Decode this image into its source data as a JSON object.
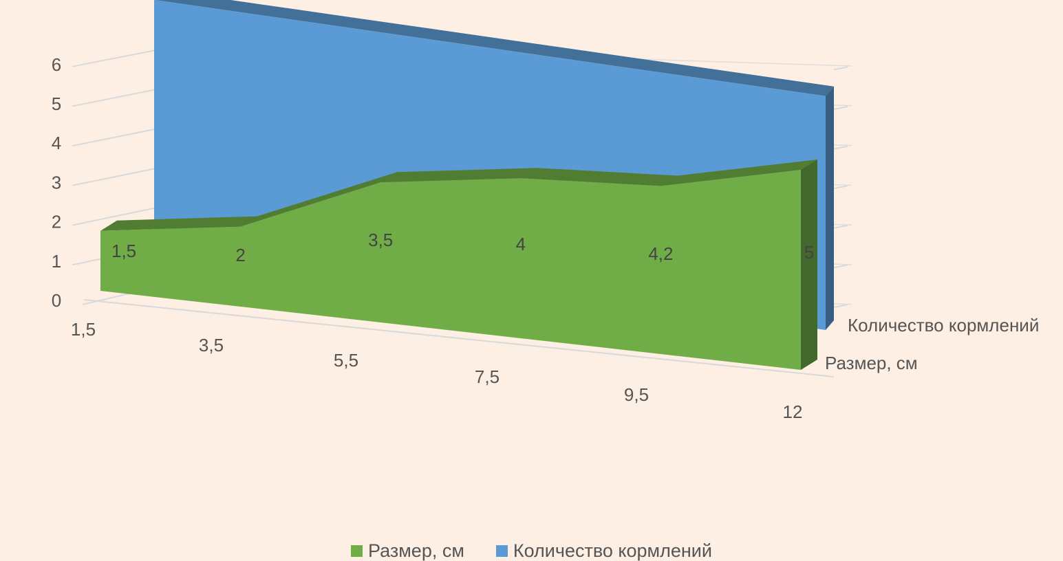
{
  "chart_data": {
    "type": "area",
    "three_d": true,
    "categories": [
      "1,5",
      "3,5",
      "5,5",
      "7,5",
      "9,5",
      "12"
    ],
    "series": [
      {
        "name": "Размер, см",
        "values": [
          1.5,
          2,
          3.5,
          4,
          4.2,
          5
        ],
        "data_labels": [
          "1,5",
          "2",
          "3,5",
          "4",
          "4,2",
          "5"
        ],
        "color": "#70ad47"
      },
      {
        "name": "Количество кормлений",
        "values": [
          6,
          6,
          6,
          6,
          6,
          6
        ],
        "color": "#5b9bd5"
      }
    ],
    "y_ticks": [
      "0",
      "1",
      "2",
      "3",
      "4",
      "5",
      "6"
    ],
    "ylim": [
      0,
      6
    ],
    "depth_axis_labels": [
      "Размер, см",
      "Количество кормлений"
    ],
    "legend_position": "bottom",
    "grid": true
  }
}
